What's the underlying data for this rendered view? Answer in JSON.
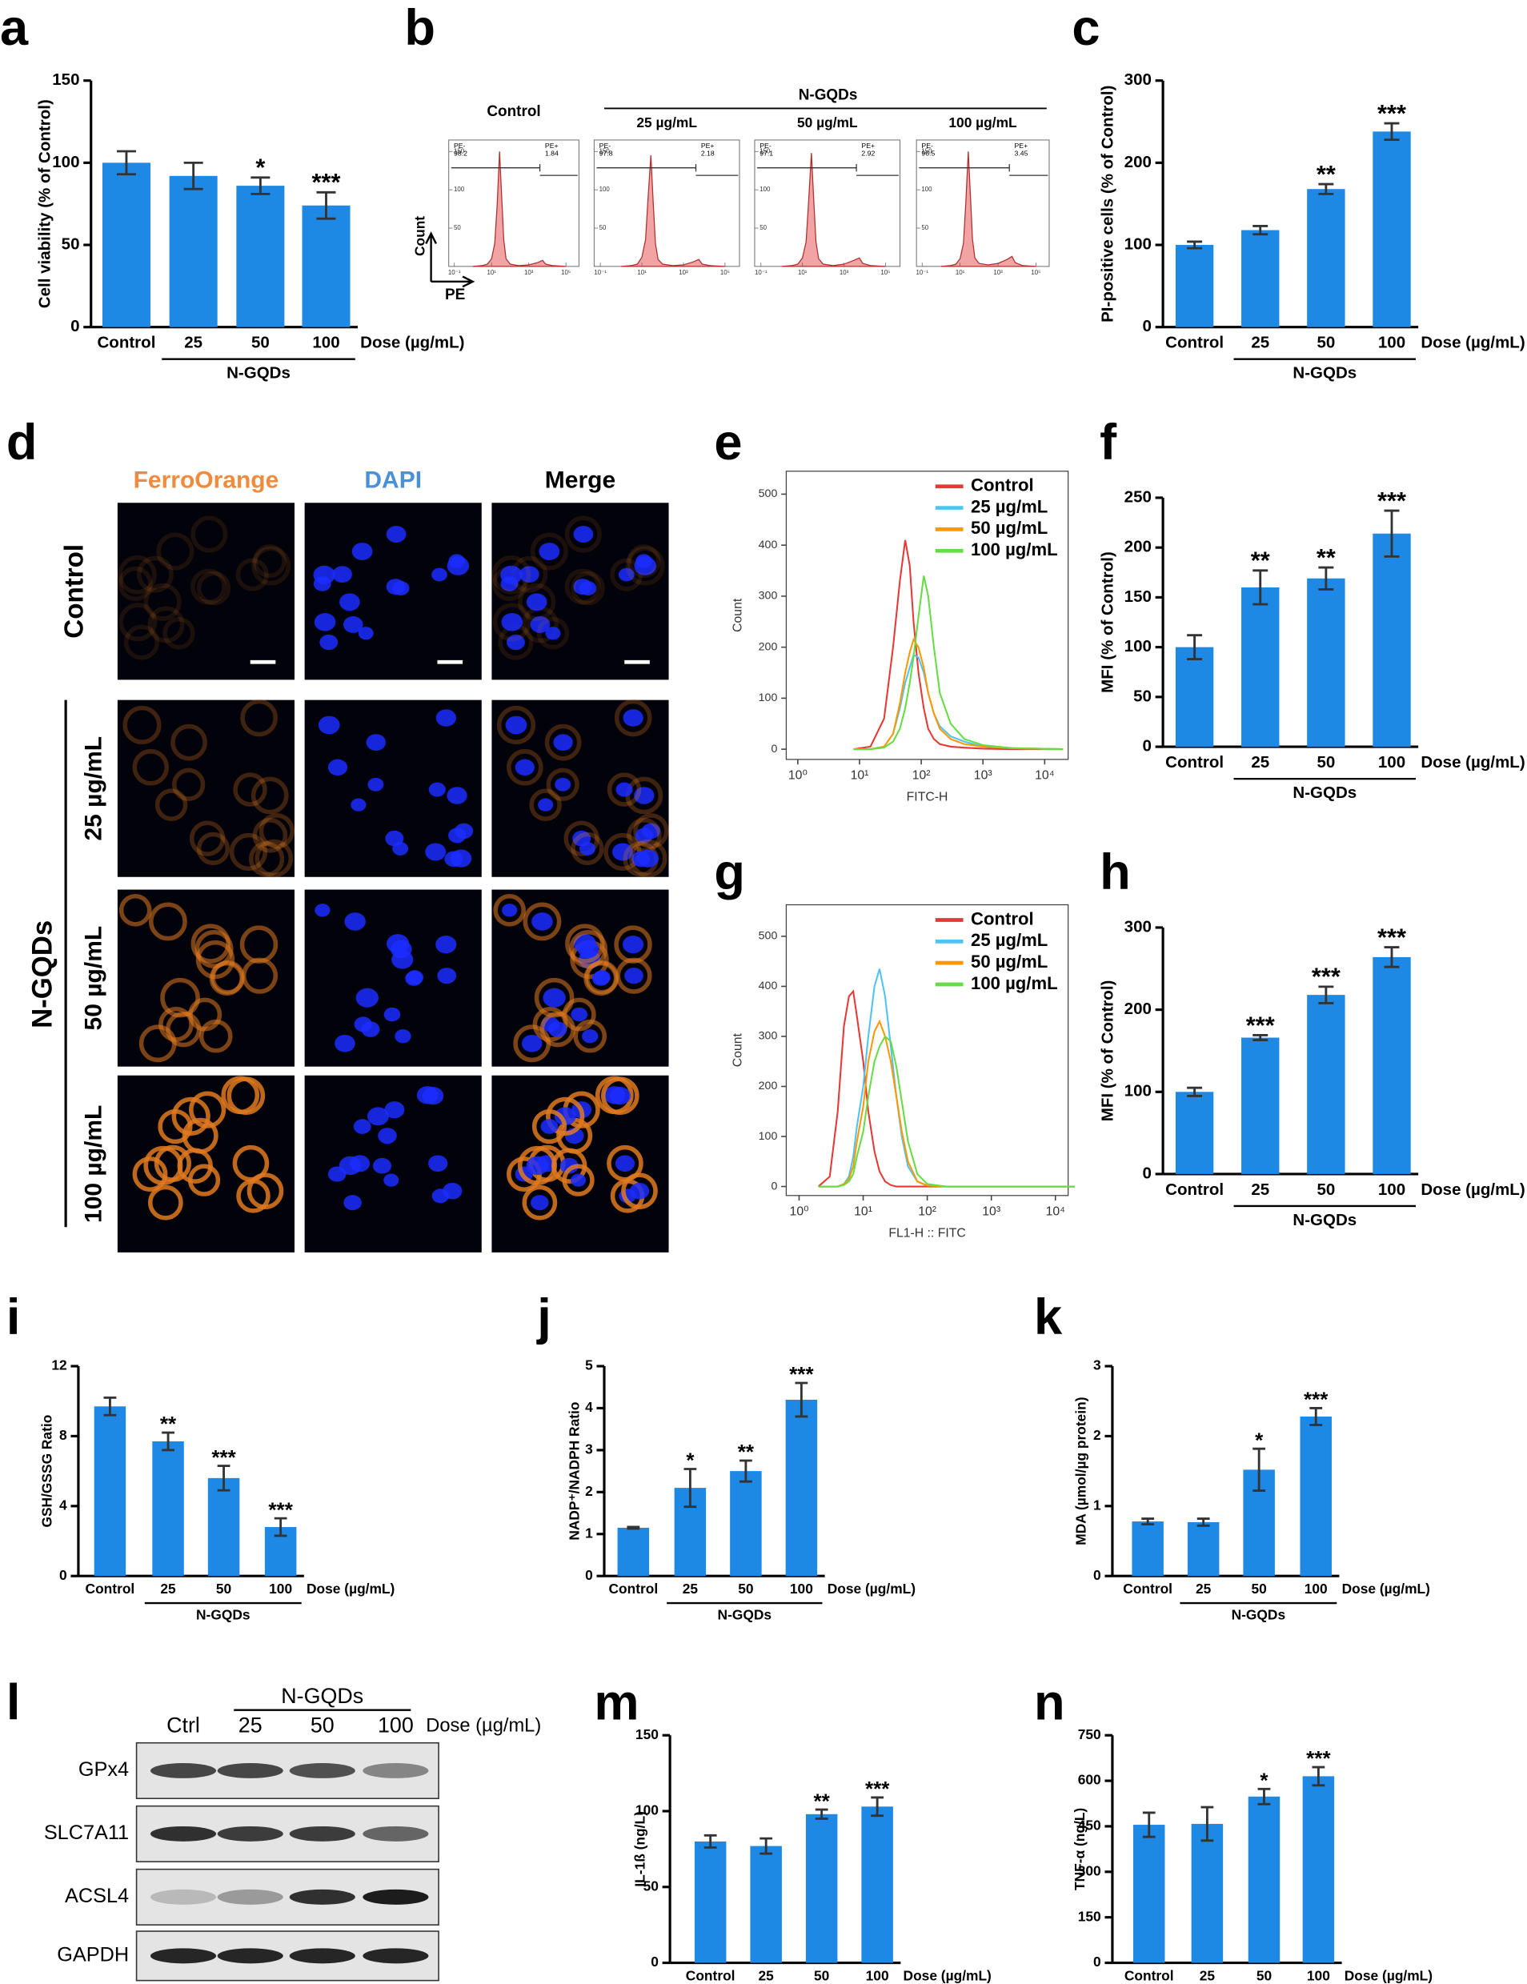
{
  "chart_data": [
    {
      "type": "bar",
      "panel": "a",
      "ylabel": "Cell viability (% of Control)",
      "categories": [
        "Control",
        "25",
        "50",
        "100"
      ],
      "values": [
        100,
        92,
        86,
        74
      ],
      "errors": [
        7,
        8,
        5,
        8
      ],
      "significance": [
        null,
        null,
        "*",
        "***"
      ],
      "xlabel": "Dose (µg/mL)",
      "group_label": "N-GQDs",
      "ylim": [
        0,
        150
      ],
      "yticks": [
        0,
        50,
        100,
        150
      ],
      "color": "#1e88e5"
    },
    {
      "type": "flow",
      "panel": "b",
      "group_label": "N-GQDs",
      "ylabel": "Count",
      "xlabel": "PE",
      "color": "#f2a3a3",
      "x": [
        1,
        3,
        6,
        10,
        15,
        20,
        27,
        35,
        45,
        60,
        100,
        300,
        1000,
        3000,
        5500,
        8000,
        20000,
        100000
      ],
      "xlim": [
        0.05,
        500000
      ],
      "ylim": [
        0,
        165
      ],
      "yticks": [
        50,
        100,
        150
      ],
      "xticks": [
        {
          "value": 0.1,
          "label": "10⁻¹"
        },
        {
          "value": 10,
          "label": "10¹"
        },
        {
          "value": 1000,
          "label": "10³"
        },
        {
          "value": 100000,
          "label": "10⁵"
        }
      ],
      "panels": [
        {
          "label": "Control",
          "neg_label": "PE-",
          "neg_value": 98.2,
          "pos_label": "PE+",
          "pos_value": 1.84,
          "values": [
            0,
            1,
            3,
            10,
            30,
            80,
            150,
            90,
            35,
            10,
            3,
            1,
            2,
            5,
            8,
            3,
            1,
            0
          ]
        },
        {
          "label": "25 µg/mL",
          "neg_label": "PE-",
          "neg_value": 97.8,
          "pos_label": "PE+",
          "pos_value": 2.18,
          "values": [
            0,
            1,
            3,
            12,
            35,
            90,
            145,
            85,
            30,
            9,
            3,
            1,
            2,
            6,
            9,
            3,
            1,
            0
          ]
        },
        {
          "label": "50 µg/mL",
          "neg_label": "PE-",
          "neg_value": 97.1,
          "pos_label": "PE+",
          "pos_value": 2.92,
          "values": [
            0,
            1,
            3,
            11,
            32,
            85,
            148,
            88,
            32,
            10,
            3,
            1,
            3,
            8,
            11,
            4,
            1,
            0
          ]
        },
        {
          "label": "100 µg/mL",
          "neg_label": "PE-",
          "neg_value": 96.5,
          "pos_label": "PE+",
          "pos_value": 3.45,
          "values": [
            0,
            1,
            3,
            10,
            30,
            82,
            150,
            92,
            36,
            11,
            4,
            2,
            4,
            9,
            13,
            5,
            1,
            0
          ]
        }
      ]
    },
    {
      "type": "bar",
      "panel": "c",
      "ylabel": "PI-positive cells (% of Control)",
      "categories": [
        "Control",
        "25",
        "50",
        "100"
      ],
      "values": [
        100,
        118,
        168,
        238
      ],
      "errors": [
        4,
        5,
        6,
        10
      ],
      "significance": [
        null,
        null,
        "**",
        "***"
      ],
      "xlabel": "Dose (µg/mL)",
      "group_label": "N-GQDs",
      "ylim": [
        0,
        300
      ],
      "yticks": [
        0,
        100,
        200,
        300
      ],
      "color": "#1e88e5"
    },
    {
      "type": "line",
      "panel": "e",
      "xlabel": "FITC-H",
      "ylabel": "Count",
      "xscale": "log",
      "legend": "upper right",
      "x": [
        8,
        15,
        25,
        35,
        45,
        55,
        65,
        75,
        90,
        110,
        130,
        160,
        200,
        300,
        500,
        1000,
        3000,
        20000
      ],
      "xlim": [
        0.65,
        24000
      ],
      "ylim": [
        -20,
        545
      ],
      "yticks": [
        0,
        100,
        200,
        300,
        400,
        500
      ],
      "xticks": [
        {
          "value": 1,
          "label": "10⁰"
        },
        {
          "value": 10,
          "label": "10¹"
        },
        {
          "value": 100,
          "label": "10²"
        },
        {
          "value": 1000,
          "label": "10³"
        },
        {
          "value": 10000,
          "label": "10⁴"
        }
      ],
      "series": [
        {
          "name": "Control",
          "color": "#e53935",
          "values": [
            0,
            5,
            60,
            200,
            330,
            410,
            360,
            250,
            150,
            80,
            40,
            20,
            10,
            5,
            3,
            1,
            0,
            0
          ]
        },
        {
          "name": "25 µg/mL",
          "color": "#4fc3f7",
          "values": [
            0,
            0,
            5,
            30,
            80,
            130,
            160,
            185,
            180,
            150,
            110,
            70,
            45,
            25,
            15,
            5,
            2,
            0
          ]
        },
        {
          "name": "50 µg/mL",
          "color": "#ff9800",
          "values": [
            0,
            0,
            5,
            30,
            90,
            150,
            190,
            215,
            200,
            160,
            110,
            70,
            40,
            20,
            10,
            5,
            2,
            0
          ]
        },
        {
          "name": "100 µg/mL",
          "color": "#66dd44",
          "values": [
            0,
            0,
            3,
            15,
            40,
            80,
            130,
            180,
            260,
            340,
            300,
            200,
            110,
            50,
            20,
            8,
            2,
            0
          ]
        }
      ]
    },
    {
      "type": "bar",
      "panel": "f",
      "ylabel": "MFI (% of Control)",
      "categories": [
        "Control",
        "25",
        "50",
        "100"
      ],
      "values": [
        100,
        160,
        169,
        214
      ],
      "errors": [
        12,
        17,
        11,
        23
      ],
      "significance": [
        null,
        "**",
        "**",
        "***"
      ],
      "xlabel": "Dose (µg/mL)",
      "group_label": "N-GQDs",
      "ylim": [
        0,
        250
      ],
      "yticks": [
        0,
        50,
        100,
        150,
        200,
        250
      ],
      "color": "#1e88e5"
    },
    {
      "type": "line",
      "panel": "g",
      "xlabel": "FL1-H :: FITC",
      "ylabel": "Count",
      "xscale": "log",
      "legend": "upper right",
      "x": [
        2,
        3,
        4,
        5,
        6,
        7,
        8,
        10,
        12,
        15,
        18,
        22,
        27,
        33,
        40,
        50,
        70,
        100,
        200,
        20000
      ],
      "xlim": [
        0.63,
        15800
      ],
      "ylim": [
        -18,
        563
      ],
      "yticks": [
        0,
        100,
        200,
        300,
        400,
        500
      ],
      "xticks": [
        {
          "value": 1,
          "label": "10⁰"
        },
        {
          "value": 10,
          "label": "10¹"
        },
        {
          "value": 100,
          "label": "10²"
        },
        {
          "value": 1000,
          "label": "10³"
        },
        {
          "value": 10000,
          "label": "10⁴"
        }
      ],
      "series": [
        {
          "name": "Control",
          "color": "#e53935",
          "values": [
            0,
            20,
            150,
            320,
            380,
            390,
            340,
            250,
            150,
            70,
            30,
            10,
            3,
            0,
            0,
            0,
            0,
            0,
            0,
            0
          ]
        },
        {
          "name": "25 µg/mL",
          "color": "#4fc3f7",
          "values": [
            0,
            0,
            0,
            5,
            20,
            60,
            120,
            200,
            300,
            400,
            435,
            380,
            280,
            180,
            100,
            40,
            10,
            2,
            0,
            0
          ]
        },
        {
          "name": "50 µg/mL",
          "color": "#ff9800",
          "values": [
            0,
            0,
            0,
            5,
            15,
            40,
            90,
            160,
            250,
            310,
            330,
            300,
            250,
            180,
            110,
            50,
            10,
            2,
            0,
            0
          ]
        },
        {
          "name": "100 µg/mL",
          "color": "#66dd44",
          "values": [
            0,
            0,
            0,
            3,
            10,
            25,
            60,
            110,
            180,
            250,
            280,
            300,
            290,
            240,
            170,
            90,
            25,
            5,
            0,
            0
          ]
        }
      ]
    },
    {
      "type": "bar",
      "panel": "h",
      "ylabel": "MFI (% of Control)",
      "categories": [
        "Control",
        "25",
        "50",
        "100"
      ],
      "values": [
        100,
        166,
        218,
        264
      ],
      "errors": [
        5,
        3,
        10,
        12
      ],
      "significance": [
        null,
        "***",
        "***",
        "***"
      ],
      "xlabel": "Dose (µg/mL)",
      "group_label": "N-GQDs",
      "ylim": [
        0,
        300
      ],
      "yticks": [
        0,
        100,
        200,
        300
      ],
      "color": "#1e88e5"
    },
    {
      "type": "bar",
      "panel": "i",
      "ylabel": "GSH/GSSG Ratio",
      "categories": [
        "Control",
        "25",
        "50",
        "100"
      ],
      "values": [
        9.7,
        7.7,
        5.6,
        2.8
      ],
      "errors": [
        0.5,
        0.5,
        0.7,
        0.5
      ],
      "significance": [
        null,
        "**",
        "***",
        "***"
      ],
      "xlabel": "Dose (µg/mL)",
      "group_label": "N-GQDs",
      "ylim": [
        0,
        12
      ],
      "yticks": [
        0,
        4,
        8,
        12
      ],
      "color": "#1e88e5"
    },
    {
      "type": "bar",
      "panel": "j",
      "ylabel": "NADP⁺/NADPH Ratio",
      "categories": [
        "Control",
        "25",
        "50",
        "100"
      ],
      "values": [
        1.15,
        2.1,
        2.5,
        4.2
      ],
      "errors": [
        0.02,
        0.45,
        0.25,
        0.4
      ],
      "significance": [
        null,
        "*",
        "**",
        "***"
      ],
      "xlabel": "Dose (µg/mL)",
      "group_label": "N-GQDs",
      "ylim": [
        0,
        5
      ],
      "yticks": [
        0,
        1,
        2,
        3,
        4,
        5
      ],
      "color": "#1e88e5"
    },
    {
      "type": "bar",
      "panel": "k",
      "ylabel": "MDA (µmol/µg protein)",
      "categories": [
        "Control",
        "25",
        "50",
        "100"
      ],
      "values": [
        0.78,
        0.77,
        1.52,
        2.28
      ],
      "errors": [
        0.04,
        0.05,
        0.3,
        0.12
      ],
      "significance": [
        null,
        null,
        "*",
        "***"
      ],
      "xlabel": "Dose (µg/mL)",
      "group_label": "N-GQDs",
      "ylim": [
        0,
        3
      ],
      "yticks": [
        0,
        1,
        2,
        3
      ],
      "color": "#1e88e5"
    },
    {
      "type": "bar",
      "panel": "m",
      "ylabel": "IL-1ß (ng/L)",
      "categories": [
        "Control",
        "25",
        "50",
        "100"
      ],
      "values": [
        80,
        77,
        98,
        103
      ],
      "errors": [
        4,
        5,
        3,
        6
      ],
      "significance": [
        null,
        null,
        "**",
        "***"
      ],
      "xlabel": "Dose (µg/mL)",
      "group_label": "N-GQDs",
      "ylim": [
        0,
        150
      ],
      "yticks": [
        0,
        50,
        100,
        150
      ],
      "color": "#1e88e5"
    },
    {
      "type": "bar",
      "panel": "n",
      "ylabel": "TNF-α (ng/L)",
      "categories": [
        "Control",
        "25",
        "50",
        "100"
      ],
      "values": [
        455,
        458,
        548,
        615
      ],
      "errors": [
        40,
        55,
        25,
        30
      ],
      "significance": [
        null,
        null,
        "*",
        "***"
      ],
      "xlabel": "Dose (µg/mL)",
      "group_label": "N-GQDs",
      "ylim": [
        0,
        750
      ],
      "yticks": [
        0,
        150,
        300,
        450,
        600,
        750
      ],
      "color": "#1e88e5"
    }
  ],
  "microscopy": {
    "panel": "d",
    "columns": [
      "FerroOrange",
      "DAPI",
      "Merge"
    ],
    "rows": [
      "Control",
      "25 µg/mL",
      "50 µg/mL",
      "100 µg/mL"
    ],
    "group_label": "N-GQDs"
  },
  "western_blot": {
    "panel": "l",
    "lanes": [
      "Ctrl",
      "25",
      "50",
      "100"
    ],
    "group_label": "N-GQDs",
    "xlabel": "Dose (µg/mL)",
    "proteins": [
      "GPx4",
      "SLC7A11",
      "ACSL4",
      "GAPDH"
    ]
  }
}
